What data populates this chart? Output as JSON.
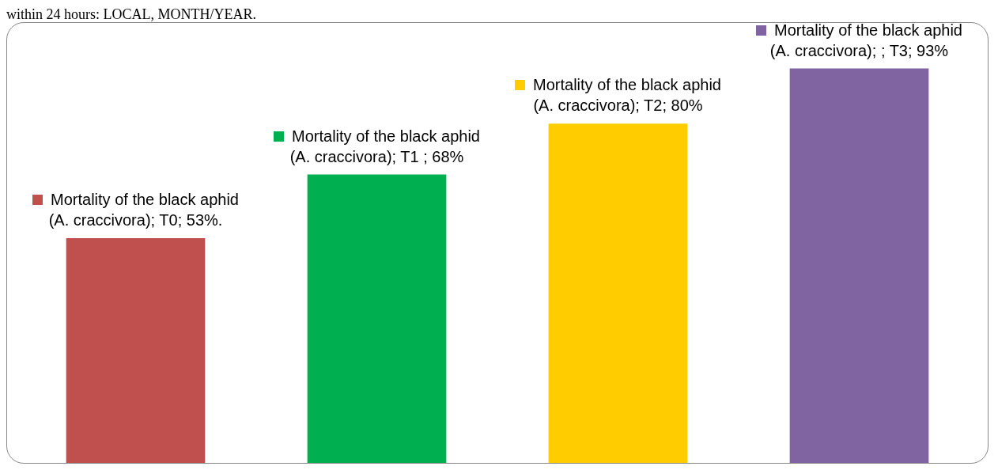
{
  "chart_data": {
    "type": "bar",
    "categories": [
      null,
      null,
      null,
      null
    ],
    "values": [
      53,
      68,
      80,
      93
    ],
    "colors": [
      "#c0504d",
      "#00b050",
      "#ffcc00",
      "#8064a2"
    ],
    "value_labels": [
      "Mortality of the black aphid (A. craccivora); T0; 53%.",
      "Mortality of the black aphid (A. craccivora); T1 ; 68%",
      "Mortality of the black aphid (A. craccivora); T2; 80%",
      "Mortality of the black aphid (A. craccivora); ; T3; 93%"
    ],
    "legend": false,
    "annotations": [
      "within 24 hours: LOCAL, MONTH/YEAR."
    ]
  }
}
